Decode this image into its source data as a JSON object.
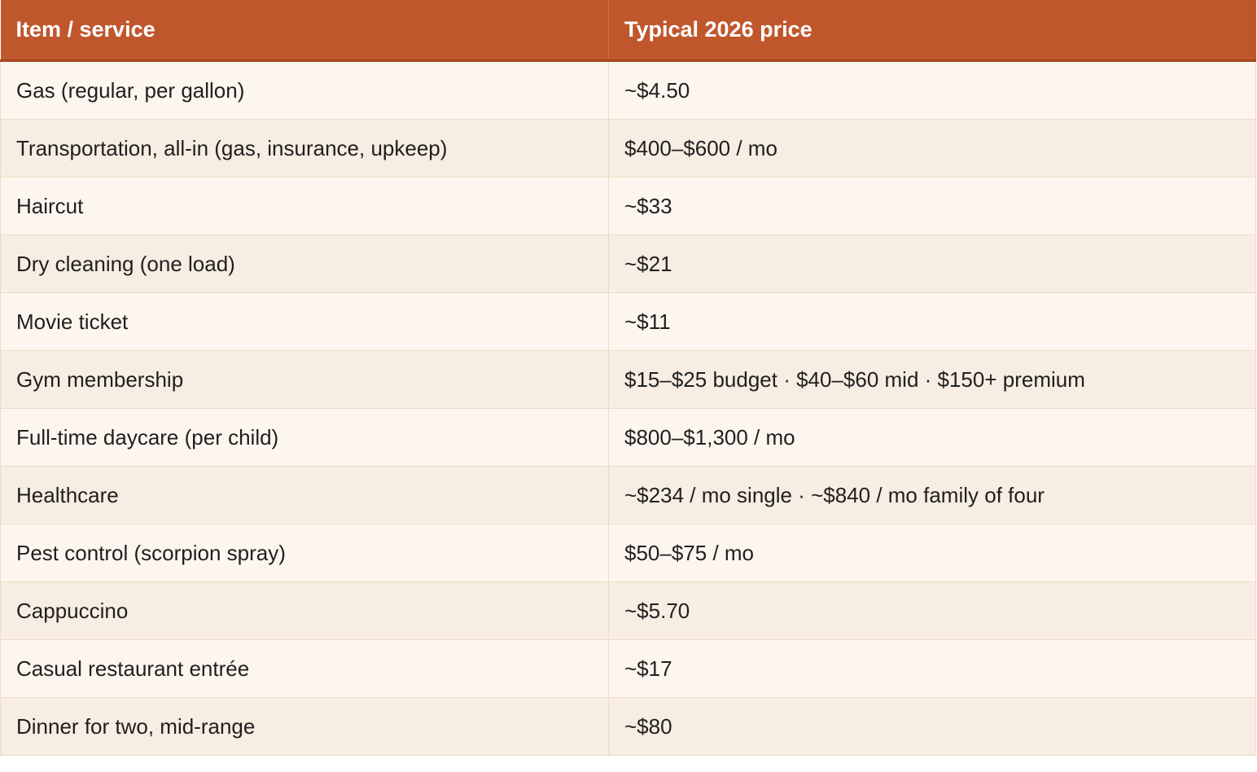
{
  "table": {
    "headers": [
      "Item / service",
      "Typical 2026 price"
    ],
    "rows": [
      [
        "Gas (regular, per gallon)",
        "~$4.50"
      ],
      [
        "Transportation, all-in (gas, insurance, upkeep)",
        "$400–$600 / mo"
      ],
      [
        "Haircut",
        "~$33"
      ],
      [
        "Dry cleaning (one load)",
        "~$21"
      ],
      [
        "Movie ticket",
        "~$11"
      ],
      [
        "Gym membership",
        "$15–$25 budget · $40–$60 mid · $150+ premium"
      ],
      [
        "Full-time daycare (per child)",
        "$800–$1,300 / mo"
      ],
      [
        "Healthcare",
        "~$234 / mo single · ~$840 / mo family of four"
      ],
      [
        "Pest control (scorpion spray)",
        "$50–$75 / mo"
      ],
      [
        "Cappuccino",
        "~$5.70"
      ],
      [
        "Casual restaurant entrée",
        "~$17"
      ],
      [
        "Dinner for two, mid-range",
        "~$80"
      ]
    ]
  },
  "colors": {
    "header_bg": "#c0562c",
    "row_odd_bg": "#fdf6ef",
    "row_even_bg": "#f7ede2",
    "border": "#ecdcc7"
  }
}
